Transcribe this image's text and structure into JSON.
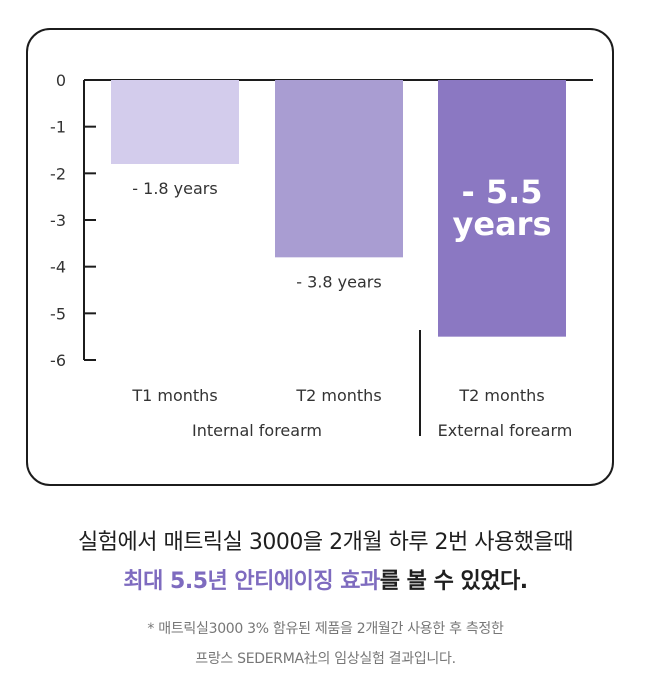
{
  "chart_data": {
    "type": "bar",
    "categories": [
      "T1 months",
      "T2 months",
      "T2 months"
    ],
    "groups": [
      {
        "label": "Internal forearm",
        "categories": [
          "T1 months",
          "T2 months"
        ]
      },
      {
        "label": "External forearm",
        "categories": [
          "T2 months"
        ]
      }
    ],
    "values": [
      -1.8,
      -3.8,
      -5.5
    ],
    "data_labels": [
      "- 1.8 years",
      "- 3.8 years",
      "- 5.5 years"
    ],
    "colors": [
      "#d3ccec",
      "#a99dd2",
      "#8b78c2"
    ],
    "ylim": [
      -6,
      0
    ],
    "yticks": [
      0,
      -1,
      -2,
      -3,
      -4,
      -5,
      -6
    ],
    "title": "",
    "xlabel": "",
    "ylabel": "",
    "grid": false
  },
  "caption": {
    "headline": "실험에서 매트릭실 3000을 2개월 하루 2번 사용했을때",
    "highlight": "최대 5.5년 안티에이징 효과",
    "highlight_suffix": "를 볼 수 있었다.",
    "note_line1": "* 매트릭실3000 3% 함유된 제품을 2개월간 사용한 후 측정한",
    "note_line2": "프랑스 SEDERMA社의 임상실험 결과입니다."
  },
  "colors": {
    "accent": "#7e6bbf",
    "frame": "#1c1c1c"
  }
}
